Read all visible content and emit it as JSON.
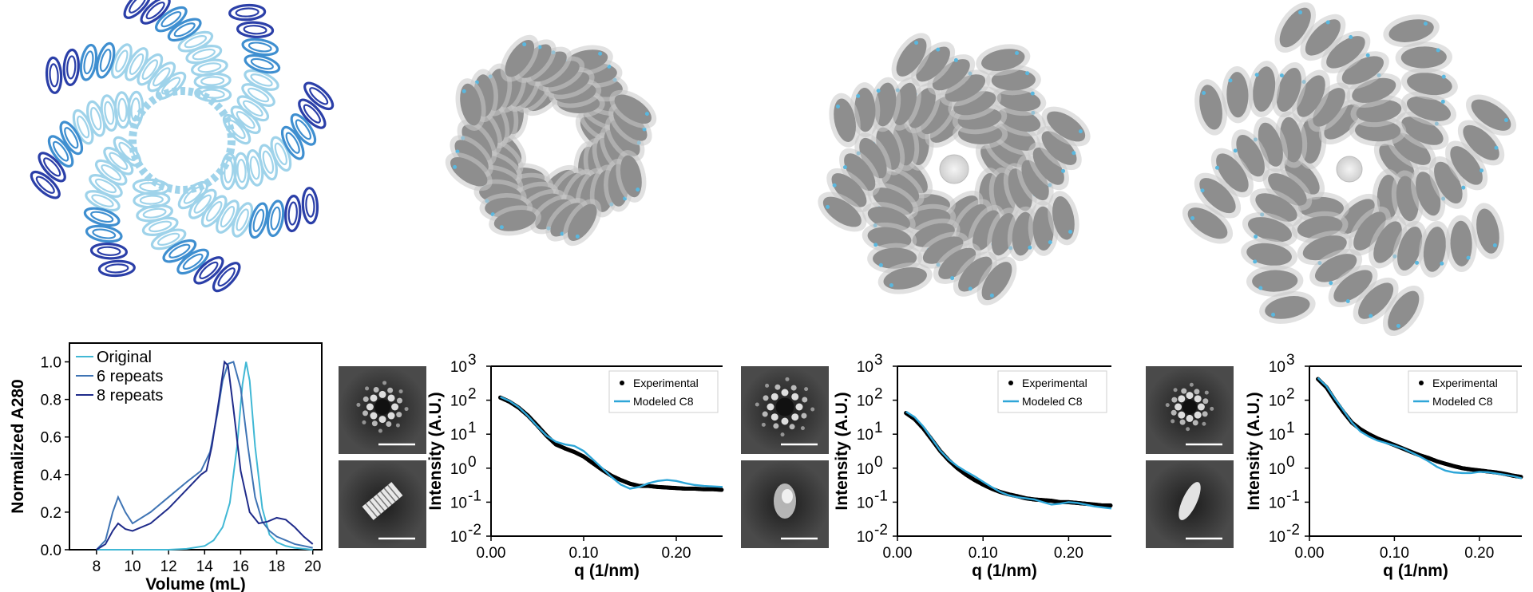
{
  "chart_data": [
    {
      "type": "line",
      "xlabel": "Volume (mL)",
      "ylabel": "Normalized A280",
      "xlim": [
        6.5,
        20.5
      ],
      "ylim": [
        0,
        1.1
      ],
      "xticks": [
        "8",
        "10",
        "12",
        "14",
        "16",
        "18",
        "20"
      ],
      "yticks": [
        "0.0",
        "0.2",
        "0.4",
        "0.6",
        "0.8",
        "1.0"
      ],
      "legend_position": "top-left",
      "series": [
        {
          "name": "Original",
          "color": "#41b8d5",
          "x": [
            8,
            12,
            13,
            14,
            14.5,
            15,
            15.4,
            15.8,
            16.1,
            16.3,
            16.5,
            16.8,
            17.2,
            17.6,
            18,
            18.5,
            19,
            20
          ],
          "y": [
            0,
            0,
            0.005,
            0.02,
            0.05,
            0.12,
            0.25,
            0.55,
            0.88,
            1.0,
            0.9,
            0.55,
            0.22,
            0.08,
            0.04,
            0.02,
            0.01,
            0
          ]
        },
        {
          "name": "6 repeats",
          "color": "#3f74b4",
          "x": [
            8,
            8.5,
            8.9,
            9.2,
            9.6,
            10,
            11,
            12,
            13,
            13.8,
            14.3,
            14.7,
            15.0,
            15.3,
            15.6,
            16.0,
            16.4,
            16.8,
            17.2,
            17.6,
            18,
            18.5,
            19,
            19.5,
            20
          ],
          "y": [
            0,
            0.05,
            0.2,
            0.28,
            0.2,
            0.14,
            0.2,
            0.28,
            0.36,
            0.42,
            0.52,
            0.72,
            0.9,
            0.99,
            1.0,
            0.86,
            0.55,
            0.28,
            0.15,
            0.1,
            0.07,
            0.05,
            0.03,
            0.02,
            0.01
          ]
        },
        {
          "name": "8 repeats",
          "color": "#1f2b8a",
          "x": [
            8,
            8.5,
            8.9,
            9.2,
            9.6,
            10,
            11,
            12,
            13,
            13.8,
            14.1,
            14.4,
            14.8,
            15.1,
            15.3,
            15.6,
            16.0,
            16.5,
            17,
            17.5,
            18,
            18.5,
            19,
            19.5,
            20
          ],
          "y": [
            0,
            0.03,
            0.1,
            0.14,
            0.11,
            0.1,
            0.14,
            0.22,
            0.32,
            0.4,
            0.42,
            0.55,
            0.8,
            1.0,
            0.98,
            0.75,
            0.42,
            0.2,
            0.14,
            0.15,
            0.17,
            0.16,
            0.12,
            0.07,
            0.03
          ]
        }
      ]
    },
    {
      "type": "scatter",
      "xlabel": "q (1/nm)",
      "ylabel": "Intensity (A.U.)",
      "scale_y": "log",
      "xlim": [
        0,
        0.25
      ],
      "ylim": [
        0.01,
        1000
      ],
      "xticks": [
        "0.00",
        "0.10",
        "0.20"
      ],
      "yticks": [
        {
          "base": "10",
          "exp": "-2"
        },
        {
          "base": "10",
          "exp": "-1"
        },
        {
          "base": "10",
          "exp": "0"
        },
        {
          "base": "10",
          "exp": "1"
        },
        {
          "base": "10",
          "exp": "2"
        },
        {
          "base": "10",
          "exp": "3"
        }
      ],
      "legend_position": "top-right",
      "series": [
        {
          "name": "Experimental",
          "color": "#000000",
          "x": [
            0.01,
            0.02,
            0.03,
            0.04,
            0.05,
            0.06,
            0.07,
            0.08,
            0.09,
            0.1,
            0.11,
            0.12,
            0.13,
            0.14,
            0.15,
            0.16,
            0.17,
            0.18,
            0.19,
            0.2,
            0.21,
            0.22,
            0.23,
            0.24,
            0.25
          ],
          "y": [
            120,
            90,
            60,
            35,
            18,
            9,
            5,
            3.8,
            3.0,
            2.2,
            1.4,
            0.9,
            0.6,
            0.45,
            0.35,
            0.3,
            0.3,
            0.28,
            0.27,
            0.26,
            0.25,
            0.25,
            0.24,
            0.24,
            0.23
          ]
        },
        {
          "name": "Modeled C8",
          "color": "#2ea6d8",
          "x": [
            0.01,
            0.02,
            0.03,
            0.04,
            0.05,
            0.06,
            0.07,
            0.08,
            0.09,
            0.1,
            0.11,
            0.12,
            0.13,
            0.14,
            0.15,
            0.16,
            0.17,
            0.18,
            0.19,
            0.2,
            0.21,
            0.22,
            0.23,
            0.24,
            0.25
          ],
          "y": [
            125,
            95,
            62,
            34,
            17,
            9,
            6,
            5,
            4.5,
            3.2,
            1.8,
            1.0,
            0.55,
            0.33,
            0.25,
            0.28,
            0.36,
            0.42,
            0.45,
            0.42,
            0.36,
            0.32,
            0.3,
            0.29,
            0.28
          ]
        }
      ]
    },
    {
      "type": "scatter",
      "xlabel": "q (1/nm)",
      "ylabel": "Intensity (A.U.)",
      "scale_y": "log",
      "xlim": [
        0,
        0.25
      ],
      "ylim": [
        0.01,
        1000
      ],
      "xticks": [
        "0.00",
        "0.10",
        "0.20"
      ],
      "yticks": [
        {
          "base": "10",
          "exp": "-2"
        },
        {
          "base": "10",
          "exp": "-1"
        },
        {
          "base": "10",
          "exp": "0"
        },
        {
          "base": "10",
          "exp": "1"
        },
        {
          "base": "10",
          "exp": "2"
        },
        {
          "base": "10",
          "exp": "3"
        }
      ],
      "legend_position": "top-right",
      "series": [
        {
          "name": "Experimental",
          "color": "#000000",
          "x": [
            0.01,
            0.02,
            0.03,
            0.04,
            0.05,
            0.06,
            0.07,
            0.08,
            0.09,
            0.1,
            0.11,
            0.12,
            0.13,
            0.14,
            0.15,
            0.16,
            0.17,
            0.18,
            0.19,
            0.2,
            0.21,
            0.22,
            0.23,
            0.24,
            0.25
          ],
          "y": [
            42,
            28,
            15,
            7,
            3.2,
            1.7,
            1.0,
            0.65,
            0.45,
            0.33,
            0.25,
            0.2,
            0.17,
            0.15,
            0.13,
            0.12,
            0.115,
            0.11,
            0.1,
            0.1,
            0.095,
            0.09,
            0.085,
            0.08,
            0.08
          ]
        },
        {
          "name": "Modeled C8",
          "color": "#2ea6d8",
          "x": [
            0.01,
            0.02,
            0.03,
            0.04,
            0.05,
            0.06,
            0.07,
            0.08,
            0.09,
            0.1,
            0.11,
            0.12,
            0.13,
            0.14,
            0.15,
            0.16,
            0.17,
            0.18,
            0.19,
            0.2,
            0.21,
            0.22,
            0.23,
            0.24,
            0.25
          ],
          "y": [
            46,
            32,
            17,
            7.5,
            3.3,
            1.8,
            1.15,
            0.8,
            0.58,
            0.4,
            0.28,
            0.2,
            0.16,
            0.14,
            0.13,
            0.12,
            0.1,
            0.085,
            0.09,
            0.1,
            0.095,
            0.085,
            0.075,
            0.07,
            0.065
          ]
        }
      ]
    },
    {
      "type": "scatter",
      "xlabel": "q (1/nm)",
      "ylabel": "Intensity (A.U.)",
      "scale_y": "log",
      "xlim": [
        0,
        0.25
      ],
      "ylim": [
        0.01,
        1000
      ],
      "xticks": [
        "0.00",
        "0.10",
        "0.20"
      ],
      "yticks": [
        {
          "base": "10",
          "exp": "-2"
        },
        {
          "base": "10",
          "exp": "-1"
        },
        {
          "base": "10",
          "exp": "0"
        },
        {
          "base": "10",
          "exp": "1"
        },
        {
          "base": "10",
          "exp": "2"
        },
        {
          "base": "10",
          "exp": "3"
        }
      ],
      "legend_position": "top-right",
      "series": [
        {
          "name": "Experimental",
          "color": "#000000",
          "x": [
            0.01,
            0.02,
            0.03,
            0.04,
            0.05,
            0.06,
            0.07,
            0.08,
            0.09,
            0.1,
            0.11,
            0.12,
            0.13,
            0.14,
            0.15,
            0.16,
            0.17,
            0.18,
            0.19,
            0.2,
            0.21,
            0.22,
            0.23,
            0.24,
            0.25
          ],
          "y": [
            420,
            240,
            100,
            45,
            22,
            14,
            10,
            7.5,
            6,
            4.8,
            3.8,
            3.0,
            2.4,
            2.0,
            1.6,
            1.35,
            1.15,
            1.0,
            0.92,
            0.86,
            0.8,
            0.75,
            0.68,
            0.6,
            0.55
          ]
        },
        {
          "name": "Modeled C8",
          "color": "#2ea6d8",
          "x": [
            0.01,
            0.02,
            0.03,
            0.04,
            0.05,
            0.06,
            0.07,
            0.08,
            0.09,
            0.1,
            0.11,
            0.12,
            0.13,
            0.14,
            0.15,
            0.16,
            0.17,
            0.18,
            0.19,
            0.2,
            0.21,
            0.22,
            0.23,
            0.24,
            0.25
          ],
          "y": [
            450,
            260,
            110,
            50,
            22,
            12,
            8.5,
            6.5,
            5.5,
            4.6,
            3.8,
            2.9,
            2.2,
            1.6,
            1.1,
            0.85,
            0.75,
            0.72,
            0.72,
            0.78,
            0.76,
            0.7,
            0.64,
            0.58,
            0.5
          ]
        }
      ]
    }
  ],
  "colors": {
    "ribbon_light": "#9fd3ea",
    "ribbon_mid": "#3f8fd0",
    "ribbon_dark": "#2b3fa8",
    "map_grey": "#8e8e8e",
    "map_highlight": "#5ab7de"
  }
}
